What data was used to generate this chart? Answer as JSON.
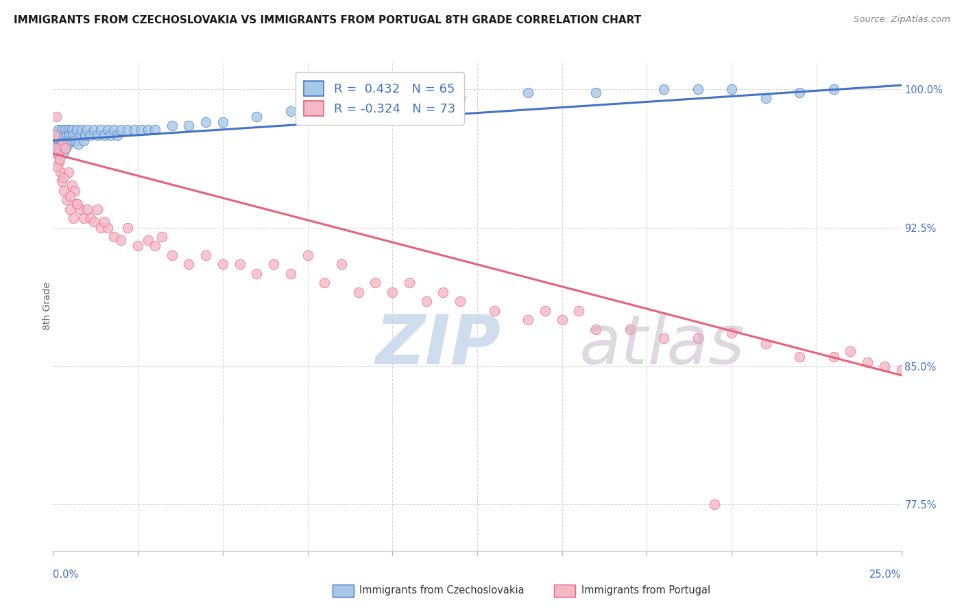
{
  "title": "IMMIGRANTS FROM CZECHOSLOVAKIA VS IMMIGRANTS FROM PORTUGAL 8TH GRADE CORRELATION CHART",
  "source": "Source: ZipAtlas.com",
  "ylabel": "8th Grade",
  "xmin": 0.0,
  "xmax": 25.0,
  "ymin": 75.0,
  "ymax": 101.5,
  "yticks": [
    77.5,
    85.0,
    92.5,
    100.0
  ],
  "legend_r1": "R =  0.432   N = 65",
  "legend_r2": "R = -0.324   N = 73",
  "color_czech": "#a8c8e8",
  "color_portugal": "#f4b8c8",
  "line_color_czech": "#4472c4",
  "line_color_portugal": "#e8607a",
  "czech_x": [
    0.05,
    0.08,
    0.1,
    0.12,
    0.14,
    0.16,
    0.18,
    0.2,
    0.22,
    0.24,
    0.26,
    0.28,
    0.3,
    0.32,
    0.34,
    0.36,
    0.38,
    0.4,
    0.42,
    0.44,
    0.46,
    0.48,
    0.5,
    0.55,
    0.6,
    0.65,
    0.7,
    0.75,
    0.8,
    0.85,
    0.9,
    0.95,
    1.0,
    1.1,
    1.2,
    1.3,
    1.4,
    1.5,
    1.6,
    1.7,
    1.8,
    1.9,
    2.0,
    2.2,
    2.4,
    2.6,
    2.8,
    3.0,
    3.5,
    4.0,
    4.5,
    5.0,
    6.0,
    7.0,
    8.0,
    10.0,
    12.0,
    14.0,
    16.0,
    18.0,
    19.0,
    20.0,
    21.0,
    22.0,
    23.0
  ],
  "czech_y": [
    96.8,
    97.2,
    97.0,
    96.5,
    97.5,
    97.8,
    97.2,
    96.8,
    97.5,
    97.0,
    97.8,
    97.2,
    96.5,
    97.5,
    97.0,
    97.8,
    96.8,
    97.5,
    97.2,
    97.0,
    97.8,
    97.5,
    97.2,
    97.8,
    97.5,
    97.2,
    97.8,
    97.0,
    97.5,
    97.8,
    97.2,
    97.5,
    97.8,
    97.5,
    97.8,
    97.5,
    97.8,
    97.5,
    97.8,
    97.5,
    97.8,
    97.5,
    97.8,
    97.8,
    97.8,
    97.8,
    97.8,
    97.8,
    98.0,
    98.0,
    98.2,
    98.2,
    98.5,
    98.8,
    99.0,
    99.5,
    99.5,
    99.8,
    99.8,
    100.0,
    100.0,
    100.0,
    99.5,
    99.8,
    100.0
  ],
  "portugal_x": [
    0.1,
    0.15,
    0.18,
    0.22,
    0.25,
    0.28,
    0.32,
    0.35,
    0.4,
    0.45,
    0.5,
    0.55,
    0.6,
    0.65,
    0.7,
    0.8,
    0.9,
    1.0,
    1.1,
    1.2,
    1.3,
    1.4,
    1.6,
    1.8,
    2.0,
    2.2,
    2.5,
    2.8,
    3.0,
    3.2,
    3.5,
    4.0,
    4.5,
    5.0,
    5.5,
    6.0,
    6.5,
    7.0,
    7.5,
    8.0,
    8.5,
    9.0,
    9.5,
    10.0,
    10.5,
    11.0,
    11.5,
    12.0,
    13.0,
    14.0,
    14.5,
    15.0,
    15.5,
    16.0,
    17.0,
    18.0,
    19.0,
    20.0,
    21.0,
    22.0,
    23.0,
    23.5,
    24.0,
    24.5,
    25.0,
    0.05,
    0.08,
    0.12,
    0.2,
    0.3,
    0.5,
    0.7,
    1.5
  ],
  "portugal_y": [
    98.5,
    96.5,
    96.0,
    95.5,
    95.0,
    97.0,
    94.5,
    96.8,
    94.0,
    95.5,
    93.5,
    94.8,
    93.0,
    94.5,
    93.8,
    93.5,
    93.0,
    93.5,
    93.0,
    92.8,
    93.5,
    92.5,
    92.5,
    92.0,
    91.8,
    92.5,
    91.5,
    91.8,
    91.5,
    92.0,
    91.0,
    90.5,
    91.0,
    90.5,
    90.5,
    90.0,
    90.5,
    90.0,
    91.0,
    89.5,
    90.5,
    89.0,
    89.5,
    89.0,
    89.5,
    88.5,
    89.0,
    88.5,
    88.0,
    87.5,
    88.0,
    87.5,
    88.0,
    87.0,
    87.0,
    86.5,
    86.5,
    86.8,
    86.2,
    85.5,
    85.5,
    85.8,
    85.2,
    85.0,
    84.8,
    97.5,
    96.8,
    95.8,
    96.2,
    95.2,
    94.2,
    93.8,
    92.8
  ],
  "portugal_outlier_x": [
    19.5
  ],
  "portugal_outlier_y": [
    77.5
  ],
  "czech_trend_x": [
    0.0,
    25.0
  ],
  "czech_trend_y": [
    97.2,
    100.2
  ],
  "portugal_trend_x": [
    0.0,
    25.0
  ],
  "portugal_trend_y": [
    96.5,
    84.5
  ],
  "grid_color": "#d8d8d8",
  "background_color": "#ffffff",
  "watermark_zip_color": "#c8d8ec",
  "watermark_atlas_color": "#c8b8c8"
}
